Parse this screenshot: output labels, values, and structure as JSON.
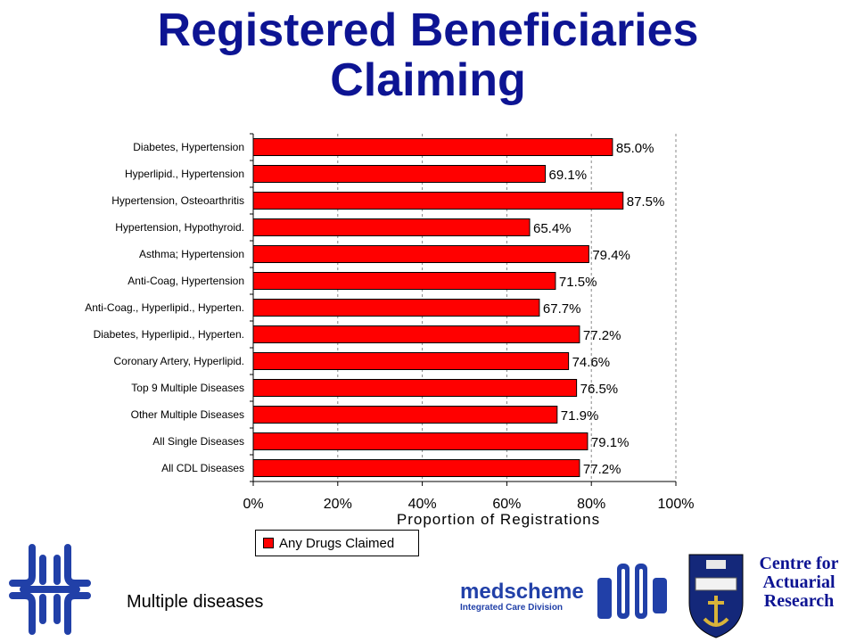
{
  "title": {
    "line1": "Registered Beneficiaries",
    "line2": "Claiming"
  },
  "chart_data": {
    "type": "bar",
    "orientation": "horizontal",
    "categories": [
      "Diabetes, Hypertension",
      "Hyperlipid., Hypertension",
      "Hypertension, Osteoarthritis",
      "Hypertension, Hypothyroid.",
      "Asthma; Hypertension",
      "Anti-Coag, Hypertension",
      "Anti-Coag., Hyperlipid., Hyperten.",
      "Diabetes, Hyperlipid., Hyperten.",
      "Coronary Artery, Hyperlipid.",
      "Top 9 Multiple Diseases",
      "Other Multiple Diseases",
      "All Single Diseases",
      "All CDL Diseases"
    ],
    "series": [
      {
        "name": "Any Drugs Claimed",
        "values": [
          85.0,
          69.1,
          87.5,
          65.4,
          79.4,
          71.5,
          67.7,
          77.2,
          74.6,
          76.5,
          71.9,
          79.1,
          77.2
        ],
        "labels": [
          "85.0%",
          "69.1%",
          "87.5%",
          "65.4%",
          "79.4%",
          "71.5%",
          "67.7%",
          "77.2%",
          "74.6%",
          "76.5%",
          "71.9%",
          "79.1%",
          "77.2%"
        ]
      }
    ],
    "xlabel": "Proportion of Registrations",
    "xlim": [
      0,
      100
    ],
    "xticks": [
      "0%",
      "20%",
      "40%",
      "60%",
      "80%",
      "100%"
    ],
    "grid": "vertical dashed",
    "legend_position": "bottom-left",
    "bar_color": "#ff0000"
  },
  "footer": {
    "caption": "Multiple diseases",
    "medscheme_name": "medscheme",
    "medscheme_division": "Integrated Care Division",
    "car_line1": "Centre for",
    "car_line2": "Actuarial",
    "car_line3": "Research"
  },
  "colors": {
    "title": "#0d1493",
    "bar": "#ff0000",
    "brand_blue": "#2140a8"
  }
}
